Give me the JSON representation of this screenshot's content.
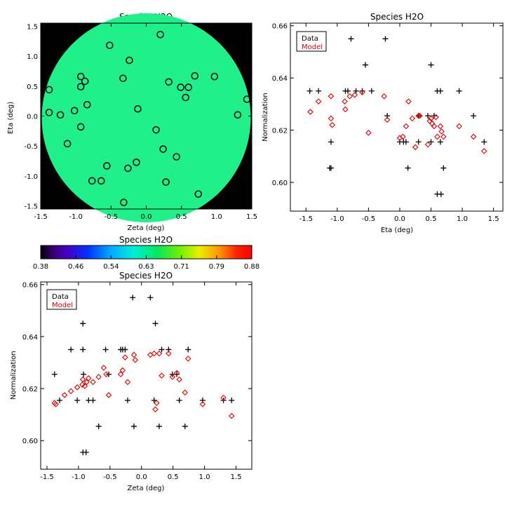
{
  "chart_data": [
    {
      "id": "map",
      "type": "scatter",
      "title": "Species H2O",
      "xlabel": "Zeta (deg)",
      "ylabel": "Eta (deg)",
      "xlim": [
        -1.5,
        1.5
      ],
      "ylim": [
        -1.55,
        1.55
      ],
      "xticks": [
        -1.5,
        -1.0,
        -0.5,
        0.0,
        0.5,
        1.0,
        1.5
      ],
      "yticks": [
        -1.5,
        -1.0,
        -0.5,
        0.0,
        0.5,
        1.0,
        1.5
      ],
      "background_color": "#000000",
      "field_color": "#1ff08a",
      "marker_color": "#111111",
      "points": [
        [
          -1.38,
          0.44
        ],
        [
          -1.38,
          0.06
        ],
        [
          -1.22,
          0.02
        ],
        [
          -1.12,
          -0.46
        ],
        [
          -1.02,
          0.09
        ],
        [
          -0.93,
          -0.18
        ],
        [
          -0.93,
          0.49
        ],
        [
          -0.93,
          0.66
        ],
        [
          -0.87,
          0.58
        ],
        [
          -0.84,
          0.19
        ],
        [
          -0.77,
          -1.08
        ],
        [
          -0.64,
          -1.08
        ],
        [
          -0.56,
          -0.83
        ],
        [
          -0.52,
          1.18
        ],
        [
          -0.33,
          0.63
        ],
        [
          -0.32,
          -1.44
        ],
        [
          -0.26,
          -0.87
        ],
        [
          -0.24,
          0.93
        ],
        [
          -0.14,
          -0.77
        ],
        [
          -0.12,
          0.12
        ],
        [
          0.14,
          -0.23
        ],
        [
          0.2,
          1.36
        ],
        [
          0.24,
          -0.55
        ],
        [
          0.28,
          -1.1
        ],
        [
          0.32,
          0.57
        ],
        [
          0.43,
          -0.68
        ],
        [
          0.49,
          0.48
        ],
        [
          0.56,
          0.31
        ],
        [
          0.6,
          0.48
        ],
        [
          0.69,
          0.67
        ],
        [
          0.74,
          -1.3
        ],
        [
          0.97,
          0.66
        ],
        [
          1.3,
          0.02
        ],
        [
          1.43,
          0.28
        ]
      ]
    },
    {
      "id": "eta",
      "type": "scatter",
      "title": "Species H2O",
      "xlabel": "Eta (deg)",
      "ylabel": "Normalization",
      "xlim": [
        -1.75,
        1.65
      ],
      "ylim": [
        0.589,
        0.661
      ],
      "xticks": [
        -1.5,
        -1.0,
        -0.5,
        0.0,
        0.5,
        1.0,
        1.5
      ],
      "yticks": [
        0.6,
        0.62,
        0.64,
        0.66
      ],
      "legend": [
        "Data",
        "Model"
      ],
      "series": [
        {
          "name": "Data",
          "marker": "plus",
          "color": "#000000",
          "points": [
            [
              -1.44,
              0.635
            ],
            [
              -1.3,
              0.635
            ],
            [
              -1.1,
              0.6155
            ],
            [
              -1.1,
              0.6055
            ],
            [
              -1.12,
              0.6055
            ],
            [
              -0.87,
              0.635
            ],
            [
              -0.83,
              0.635
            ],
            [
              -0.78,
              0.655
            ],
            [
              -0.7,
              0.635
            ],
            [
              -0.6,
              0.635
            ],
            [
              -0.55,
              0.645
            ],
            [
              -0.45,
              0.635
            ],
            [
              -0.23,
              0.655
            ],
            [
              -0.2,
              0.6255
            ],
            [
              0.0,
              0.6155
            ],
            [
              0.06,
              0.6155
            ],
            [
              0.1,
              0.6155
            ],
            [
              0.13,
              0.6055
            ],
            [
              0.3,
              0.6255
            ],
            [
              0.3,
              0.6155
            ],
            [
              0.45,
              0.6255
            ],
            [
              0.5,
              0.645
            ],
            [
              0.5,
              0.6155
            ],
            [
              0.55,
              0.6255
            ],
            [
              0.6,
              0.635
            ],
            [
              0.6,
              0.5955
            ],
            [
              0.65,
              0.635
            ],
            [
              0.65,
              0.6155
            ],
            [
              0.66,
              0.5955
            ],
            [
              0.7,
              0.6055
            ],
            [
              0.95,
              0.635
            ],
            [
              1.18,
              0.6255
            ],
            [
              1.35,
              0.6155
            ]
          ]
        },
        {
          "name": "Model",
          "marker": "diamond",
          "color": "#dd0000",
          "points": [
            [
              -1.43,
              0.627
            ],
            [
              -1.3,
              0.631
            ],
            [
              -1.1,
              0.633
            ],
            [
              -1.1,
              0.6245
            ],
            [
              -1.08,
              0.622
            ],
            [
              -0.88,
              0.631
            ],
            [
              -0.87,
              0.628
            ],
            [
              -0.8,
              0.633
            ],
            [
              -0.72,
              0.6335
            ],
            [
              -0.6,
              0.6345
            ],
            [
              -0.5,
              0.619
            ],
            [
              -0.25,
              0.633
            ],
            [
              -0.2,
              0.624
            ],
            [
              0.0,
              0.617
            ],
            [
              0.05,
              0.6175
            ],
            [
              0.1,
              0.6215
            ],
            [
              0.14,
              0.631
            ],
            [
              0.2,
              0.6245
            ],
            [
              0.25,
              0.6135
            ],
            [
              0.3,
              0.6255
            ],
            [
              0.32,
              0.6255
            ],
            [
              0.45,
              0.6145
            ],
            [
              0.48,
              0.6235
            ],
            [
              0.5,
              0.6245
            ],
            [
              0.52,
              0.6225
            ],
            [
              0.55,
              0.6215
            ],
            [
              0.58,
              0.625
            ],
            [
              0.6,
              0.6175
            ],
            [
              0.65,
              0.6215
            ],
            [
              0.67,
              0.6195
            ],
            [
              0.7,
              0.6175
            ],
            [
              0.95,
              0.6215
            ],
            [
              1.18,
              0.6175
            ],
            [
              1.35,
              0.612
            ]
          ]
        }
      ]
    },
    {
      "id": "colorbar",
      "type": "heatmap",
      "title": "Species H2O",
      "tick_labels": [
        "0.38",
        "0.46",
        "0.54",
        "0.63",
        "0.71",
        "0.79",
        "0.88"
      ],
      "range": [
        0.38,
        0.88
      ]
    },
    {
      "id": "zeta",
      "type": "scatter",
      "title": "Species H2O",
      "xlabel": "Zeta (deg)",
      "ylabel": "Normalization",
      "xlim": [
        -1.6,
        1.75
      ],
      "ylim": [
        0.589,
        0.661
      ],
      "xticks": [
        -1.5,
        -1.0,
        -0.5,
        0.0,
        0.5,
        1.0,
        1.5
      ],
      "yticks": [
        0.6,
        0.62,
        0.64,
        0.66
      ],
      "legend": [
        "Data",
        "Model"
      ],
      "series": [
        {
          "name": "Data",
          "marker": "plus",
          "color": "#000000",
          "points": [
            [
              -1.38,
              0.6255
            ],
            [
              -1.3,
              0.6155
            ],
            [
              -1.12,
              0.635
            ],
            [
              -1.02,
              0.6155
            ],
            [
              -0.93,
              0.645
            ],
            [
              -0.93,
              0.635
            ],
            [
              -0.92,
              0.6255
            ],
            [
              -0.93,
              0.5955
            ],
            [
              -0.88,
              0.5955
            ],
            [
              -0.84,
              0.6155
            ],
            [
              -0.77,
              0.6155
            ],
            [
              -0.68,
              0.6055
            ],
            [
              -0.57,
              0.635
            ],
            [
              -0.52,
              0.6255
            ],
            [
              -0.33,
              0.635
            ],
            [
              -0.3,
              0.635
            ],
            [
              -0.26,
              0.635
            ],
            [
              -0.22,
              0.6155
            ],
            [
              -0.14,
              0.655
            ],
            [
              -0.12,
              0.6055
            ],
            [
              0.14,
              0.655
            ],
            [
              0.2,
              0.6155
            ],
            [
              0.22,
              0.645
            ],
            [
              0.28,
              0.6055
            ],
            [
              0.32,
              0.635
            ],
            [
              0.43,
              0.635
            ],
            [
              0.49,
              0.6255
            ],
            [
              0.56,
              0.6255
            ],
            [
              0.6,
              0.6155
            ],
            [
              0.69,
              0.6055
            ],
            [
              0.74,
              0.635
            ],
            [
              0.97,
              0.6155
            ],
            [
              1.3,
              0.6155
            ],
            [
              1.43,
              0.6155
            ]
          ]
        },
        {
          "name": "Model",
          "marker": "diamond",
          "color": "#dd0000",
          "points": [
            [
              -1.38,
              0.6145
            ],
            [
              -1.36,
              0.614
            ],
            [
              -1.22,
              0.6175
            ],
            [
              -1.12,
              0.619
            ],
            [
              -1.02,
              0.6205
            ],
            [
              -0.94,
              0.6215
            ],
            [
              -0.93,
              0.6235
            ],
            [
              -0.9,
              0.621
            ],
            [
              -0.87,
              0.6225
            ],
            [
              -0.84,
              0.624
            ],
            [
              -0.77,
              0.6225
            ],
            [
              -0.68,
              0.6245
            ],
            [
              -0.6,
              0.628
            ],
            [
              -0.56,
              0.6255
            ],
            [
              -0.52,
              0.6175
            ],
            [
              -0.33,
              0.6255
            ],
            [
              -0.3,
              0.627
            ],
            [
              -0.26,
              0.632
            ],
            [
              -0.22,
              0.6225
            ],
            [
              -0.12,
              0.633
            ],
            [
              -0.1,
              0.631
            ],
            [
              0.14,
              0.633
            ],
            [
              0.2,
              0.6335
            ],
            [
              0.22,
              0.612
            ],
            [
              0.24,
              0.6145
            ],
            [
              0.28,
              0.6335
            ],
            [
              0.32,
              0.625
            ],
            [
              0.43,
              0.6335
            ],
            [
              0.49,
              0.6245
            ],
            [
              0.56,
              0.626
            ],
            [
              0.6,
              0.6235
            ],
            [
              0.69,
              0.6185
            ],
            [
              0.74,
              0.6315
            ],
            [
              0.97,
              0.614
            ],
            [
              1.3,
              0.6165
            ],
            [
              1.43,
              0.6095
            ]
          ]
        }
      ]
    }
  ]
}
